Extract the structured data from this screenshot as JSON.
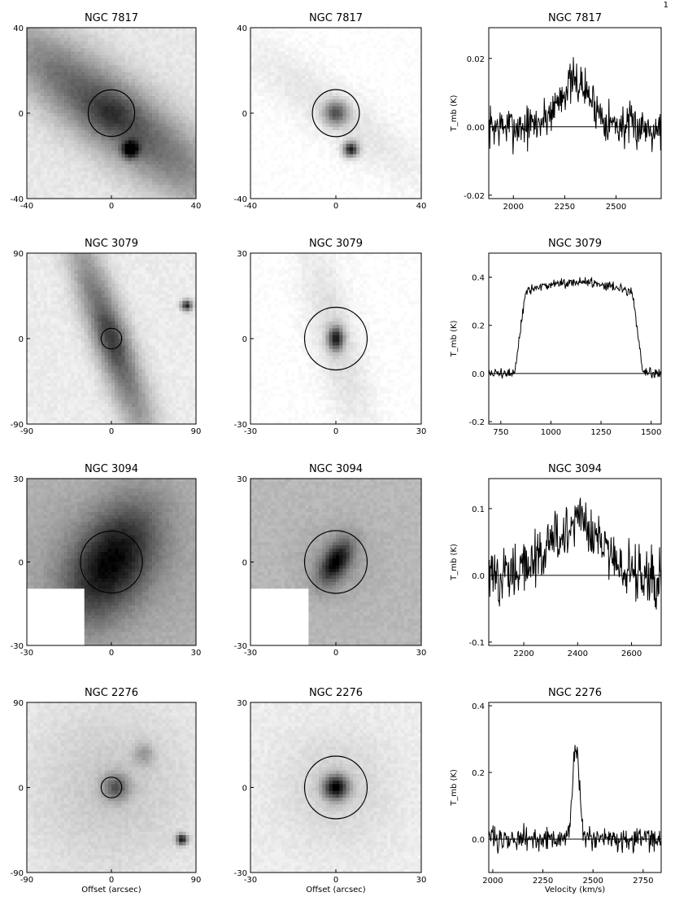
{
  "page_mark": "1",
  "chart_data": [
    {
      "type": "heatmap",
      "panel": "optical image",
      "title": "NGC 7817",
      "xlim": [
        -40,
        40
      ],
      "ylim": [
        -40,
        40
      ],
      "xticks": [
        "-40",
        "0",
        "40"
      ],
      "yticks": [
        "-40",
        "0",
        "40"
      ],
      "xlabel": "",
      "beam_circle": {
        "cx": 0,
        "cy": 0,
        "r": 11
      },
      "object": "edge-on disk, PA 135 deg, bright star at (9,-17)",
      "background": "#e8e8e8"
    },
    {
      "type": "heatmap",
      "panel": "CO-scale map",
      "title": "NGC 7817",
      "xlim": [
        -40,
        40
      ],
      "ylim": [
        -40,
        40
      ],
      "xticks": [
        "-40",
        "0",
        "40"
      ],
      "yticks": [
        "-40",
        "0",
        "40"
      ],
      "xlabel": "",
      "beam_circle": {
        "cx": 0,
        "cy": 0,
        "r": 11
      },
      "object": "faint disk with compact nucleus, star at (7,-17)",
      "background": "#ffffff"
    },
    {
      "type": "line",
      "panel": "spectrum",
      "title": "NGC 7817",
      "xlabel": "",
      "ylabel": "T_mb (K)",
      "xlim": [
        1880,
        2720
      ],
      "ylim": [
        -0.021,
        0.029
      ],
      "xticks": [
        "2000",
        "2250",
        "2500"
      ],
      "yticks": [
        "-0.02",
        "0.00",
        "0.02"
      ],
      "profile": {
        "center": 2300,
        "width": 190,
        "peak": 0.013,
        "noise": 0.0045,
        "shape": "gauss"
      }
    },
    {
      "type": "heatmap",
      "panel": "optical image",
      "title": "NGC 3079",
      "xlim": [
        -90,
        90
      ],
      "ylim": [
        -90,
        90
      ],
      "xticks": [
        "-90",
        "0",
        "90"
      ],
      "yticks": [
        "-90",
        "0",
        "90"
      ],
      "xlabel": "",
      "beam_circle": {
        "cx": 0,
        "cy": 0,
        "r": 11
      },
      "object": "edge-on disk, nearly north-south, dust lane",
      "background": "#ececec"
    },
    {
      "type": "heatmap",
      "panel": "CO-scale map",
      "title": "NGC 3079",
      "xlim": [
        -30,
        30
      ],
      "ylim": [
        -30,
        30
      ],
      "xticks": [
        "-30",
        "0",
        "30"
      ],
      "yticks": [
        "-30",
        "0",
        "30"
      ],
      "xlabel": "",
      "beam_circle": {
        "cx": 0,
        "cy": 0,
        "r": 11
      },
      "object": "compact nucleus in elongated disk",
      "background": "#ffffff"
    },
    {
      "type": "line",
      "panel": "spectrum",
      "title": "NGC 3079",
      "xlabel": "",
      "ylabel": "T_mb (K)",
      "xlim": [
        690,
        1550
      ],
      "ylim": [
        -0.21,
        0.5
      ],
      "xticks": [
        "750",
        "1000",
        "1250",
        "1500"
      ],
      "yticks": [
        "-0.2",
        "0.0",
        "0.2",
        "0.4"
      ],
      "profile": {
        "center": 1140,
        "width": 640,
        "peak": 0.38,
        "noise": 0.015,
        "shape": "flat-top"
      }
    },
    {
      "type": "heatmap",
      "panel": "optical image",
      "title": "NGC 3094",
      "xlim": [
        -30,
        30
      ],
      "ylim": [
        -30,
        30
      ],
      "xticks": [
        "-30",
        "0",
        "30"
      ],
      "yticks": [
        "-30",
        "0",
        "30"
      ],
      "xlabel": "",
      "beam_circle": {
        "cx": 0,
        "cy": 0,
        "r": 11
      },
      "object": "bright elongated nucleus, blanked lower-left corner",
      "background": "#b4b4b4"
    },
    {
      "type": "heatmap",
      "panel": "CO-scale map",
      "title": "NGC 3094",
      "xlim": [
        -30,
        30
      ],
      "ylim": [
        -30,
        30
      ],
      "xticks": [
        "-30",
        "0",
        "30"
      ],
      "yticks": [
        "-30",
        "0",
        "30"
      ],
      "xlabel": "",
      "beam_circle": {
        "cx": 0,
        "cy": 0,
        "r": 11
      },
      "object": "compact nucleus, blanked lower-left corner",
      "background": "#b8b8b8"
    },
    {
      "type": "line",
      "panel": "spectrum",
      "title": "NGC 3094",
      "xlabel": "",
      "ylabel": "T_mb (K)",
      "xlim": [
        2070,
        2710
      ],
      "ylim": [
        -0.105,
        0.145
      ],
      "xticks": [
        "2200",
        "2400",
        "2600"
      ],
      "yticks": [
        "-0.1",
        "0.0",
        "0.1"
      ],
      "profile": {
        "center": 2390,
        "width": 220,
        "peak": 0.075,
        "noise": 0.03,
        "shape": "gauss"
      }
    },
    {
      "type": "heatmap",
      "panel": "optical image",
      "title": "NGC 2276",
      "xlim": [
        -90,
        90
      ],
      "ylim": [
        -90,
        90
      ],
      "xticks": [
        "-90",
        "0",
        "90"
      ],
      "yticks": [
        "-90",
        "0",
        "90"
      ],
      "xlabel": "Offset (arcsec)",
      "beam_circle": {
        "cx": 0,
        "cy": 0,
        "r": 11
      },
      "object": "face-on spiral, star at (75,-55)",
      "background": "#f0f0f0"
    },
    {
      "type": "heatmap",
      "panel": "CO-scale map",
      "title": "NGC 2276",
      "xlim": [
        -30,
        30
      ],
      "ylim": [
        -30,
        30
      ],
      "xticks": [
        "-30",
        "0",
        "30"
      ],
      "yticks": [
        "-30",
        "0",
        "30"
      ],
      "xlabel": "Offset (arcsec)",
      "beam_circle": {
        "cx": 0,
        "cy": 0,
        "r": 11
      },
      "object": "compact bright nucleus",
      "background": "#eeeeee"
    },
    {
      "type": "line",
      "panel": "spectrum",
      "title": "NGC 2276",
      "xlabel": "Velocity (km/s)",
      "ylabel": "T_mb (K)",
      "xlim": [
        1980,
        2840
      ],
      "ylim": [
        -0.1,
        0.41
      ],
      "xticks": [
        "2000",
        "2250",
        "2500",
        "2750"
      ],
      "yticks": [
        "0.0",
        "0.2",
        "0.4"
      ],
      "profile": {
        "center": 2415,
        "width": 40,
        "peak": 0.28,
        "noise": 0.025,
        "shape": "narrow"
      }
    }
  ]
}
